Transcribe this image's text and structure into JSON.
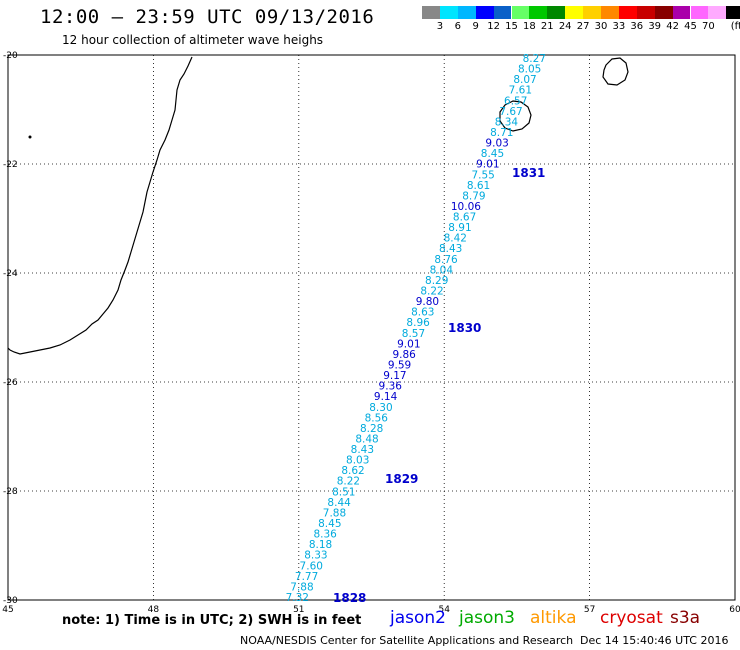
{
  "title": "12:00 – 23:59 UTC 09/13/2016",
  "subtitle": "12 hour collection of altimeter wave heighs",
  "legend": {
    "colors": [
      "#888888",
      "#00e5ff",
      "#00b7ff",
      "#0000ff",
      "#0a60c8",
      "#66ff66",
      "#00c800",
      "#008800",
      "#ffff00",
      "#ffd000",
      "#ff8800",
      "#ff0000",
      "#c80000",
      "#880000",
      "#aa00aa",
      "#ff66ff",
      "#ffaaff",
      "#000000"
    ],
    "labels": [
      "3",
      "6",
      "9",
      "12",
      "15",
      "18",
      "21",
      "24",
      "27",
      "30",
      "33",
      "36",
      "39",
      "42",
      "45",
      "70"
    ],
    "unit": "(ft)"
  },
  "map": {
    "lon_ticks": [
      "45",
      "48",
      "51",
      "54",
      "57",
      "60"
    ],
    "lat_ticks": [
      "-20",
      "-22",
      "-24",
      "-26",
      "-28",
      "-30"
    ],
    "track": {
      "colors": {
        "cyan": "#00aadd",
        "blue": "#0000cc"
      },
      "points": [
        {
          "v": "8.27",
          "c": "cyan"
        },
        {
          "v": "8.05",
          "c": "cyan"
        },
        {
          "v": "8.07",
          "c": "cyan"
        },
        {
          "v": "7.61",
          "c": "cyan"
        },
        {
          "v": "6.57",
          "c": "cyan"
        },
        {
          "v": "7.67",
          "c": "cyan"
        },
        {
          "v": "8.34",
          "c": "cyan"
        },
        {
          "v": "8.71",
          "c": "cyan"
        },
        {
          "v": "9.03",
          "c": "blue"
        },
        {
          "v": "8.45",
          "c": "cyan"
        },
        {
          "v": "9.01",
          "c": "blue"
        },
        {
          "v": "7.55",
          "c": "cyan"
        },
        {
          "v": "8.61",
          "c": "cyan"
        },
        {
          "v": "8.79",
          "c": "cyan"
        },
        {
          "v": "10.06",
          "c": "blue"
        },
        {
          "v": "8.67",
          "c": "cyan"
        },
        {
          "v": "8.91",
          "c": "cyan"
        },
        {
          "v": "8.42",
          "c": "cyan"
        },
        {
          "v": "8.43",
          "c": "cyan"
        },
        {
          "v": "8.76",
          "c": "cyan"
        },
        {
          "v": "8.04",
          "c": "cyan"
        },
        {
          "v": "8.29",
          "c": "cyan"
        },
        {
          "v": "8.22",
          "c": "cyan"
        },
        {
          "v": "9.80",
          "c": "blue"
        },
        {
          "v": "8.63",
          "c": "cyan"
        },
        {
          "v": "8.96",
          "c": "cyan"
        },
        {
          "v": "8.57",
          "c": "cyan"
        },
        {
          "v": "9.01",
          "c": "blue"
        },
        {
          "v": "9.86",
          "c": "blue"
        },
        {
          "v": "9.59",
          "c": "blue"
        },
        {
          "v": "9.17",
          "c": "blue"
        },
        {
          "v": "9.36",
          "c": "blue"
        },
        {
          "v": "9.14",
          "c": "blue"
        },
        {
          "v": "8.30",
          "c": "cyan"
        },
        {
          "v": "8.56",
          "c": "cyan"
        },
        {
          "v": "8.28",
          "c": "cyan"
        },
        {
          "v": "8.48",
          "c": "cyan"
        },
        {
          "v": "8.43",
          "c": "cyan"
        },
        {
          "v": "8.03",
          "c": "cyan"
        },
        {
          "v": "8.62",
          "c": "cyan"
        },
        {
          "v": "8.22",
          "c": "cyan"
        },
        {
          "v": "8.51",
          "c": "cyan"
        },
        {
          "v": "8.44",
          "c": "cyan"
        },
        {
          "v": "7.88",
          "c": "cyan"
        },
        {
          "v": "8.45",
          "c": "cyan"
        },
        {
          "v": "8.36",
          "c": "cyan"
        },
        {
          "v": "8.18",
          "c": "cyan"
        },
        {
          "v": "8.33",
          "c": "cyan"
        },
        {
          "v": "7.60",
          "c": "cyan"
        },
        {
          "v": "7.77",
          "c": "cyan"
        },
        {
          "v": "7.88",
          "c": "cyan"
        },
        {
          "v": "7.32",
          "c": "cyan"
        }
      ]
    },
    "time_labels": [
      "1831",
      "1830",
      "1829",
      "1828"
    ]
  },
  "note": "note: 1) Time is in UTC; 2) SWH is in feet",
  "satellites": [
    {
      "name": "jason2",
      "color": "#0000ee"
    },
    {
      "name": "jason3",
      "color": "#00aa00"
    },
    {
      "name": "altika",
      "color": "#ff9900"
    },
    {
      "name": "cryosat",
      "color": "#dd0000"
    },
    {
      "name": "s3a",
      "color": "#880000"
    }
  ],
  "footer_left": "NOAA/NESDIS Center for Satellite Applications and Research",
  "footer_right": "Dec 14 15:40:46 UTC 2016"
}
